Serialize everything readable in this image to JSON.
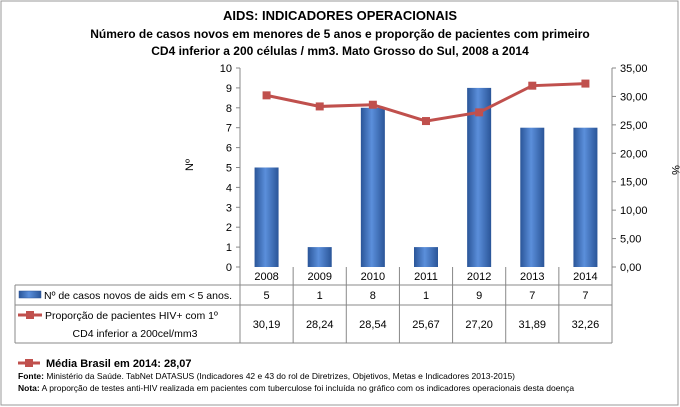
{
  "chart_data": {
    "type": "bar+line",
    "title": "AIDS: INDICADORES OPERACIONAIS",
    "subtitle_line1": "Número de casos novos em menores de 5 anos e proporção de pacientes com primeiro",
    "subtitle_line2": "CD4 inferior a 200 células / mm3. Mato Grosso do Sul, 2008 a 2014",
    "categories": [
      "2008",
      "2009",
      "2010",
      "2011",
      "2012",
      "2013",
      "2014"
    ],
    "ylabel_left": "Nº",
    "ylabel_right": "%",
    "ylim_left": [
      0,
      10
    ],
    "ylim_right": [
      0,
      35
    ],
    "yticks_left": [
      "0",
      "1",
      "2",
      "3",
      "4",
      "5",
      "6",
      "7",
      "8",
      "9",
      "10"
    ],
    "yticks_right": [
      "0,00",
      "5,00",
      "10,00",
      "15,00",
      "20,00",
      "25,00",
      "30,00",
      "35,00"
    ],
    "series": [
      {
        "name": "Nº de casos novos de aids em < 5 anos.",
        "type": "bar",
        "axis": "left",
        "color": "#3A6FBF",
        "values": [
          5,
          1,
          8,
          1,
          9,
          7,
          7
        ],
        "labels": [
          "5",
          "1",
          "8",
          "1",
          "9",
          "7",
          "7"
        ]
      },
      {
        "name_line1": "Proporção de pacientes HIV+ com 1º",
        "name_line2": "CD4 inferior a 200cel/mm3",
        "type": "line",
        "axis": "right",
        "color": "#C0504D",
        "values": [
          30.19,
          28.24,
          28.54,
          25.67,
          27.2,
          31.89,
          32.26
        ],
        "labels": [
          "30,19",
          "28,24",
          "28,54",
          "25,67",
          "27,20",
          "31,89",
          "32,26"
        ]
      }
    ],
    "legend_placement": "data-table",
    "grid": false
  },
  "footer": {
    "brazil_avg": "Média Brasil em 2014: 28,07",
    "source_label": "Fonte:",
    "source_text": " Ministério da Saúde. TabNet DATASUS (Indicadores 42 e 43 do rol de Diretrizes, Objetivos, Metas e Indicadores 2013-2015)",
    "note_label": "Nota:",
    "note_text": " A proporção de testes anti-HIV realizada em pacientes com tuberculose foi incluída no gráfico com os indicadores operacionais desta doença"
  }
}
